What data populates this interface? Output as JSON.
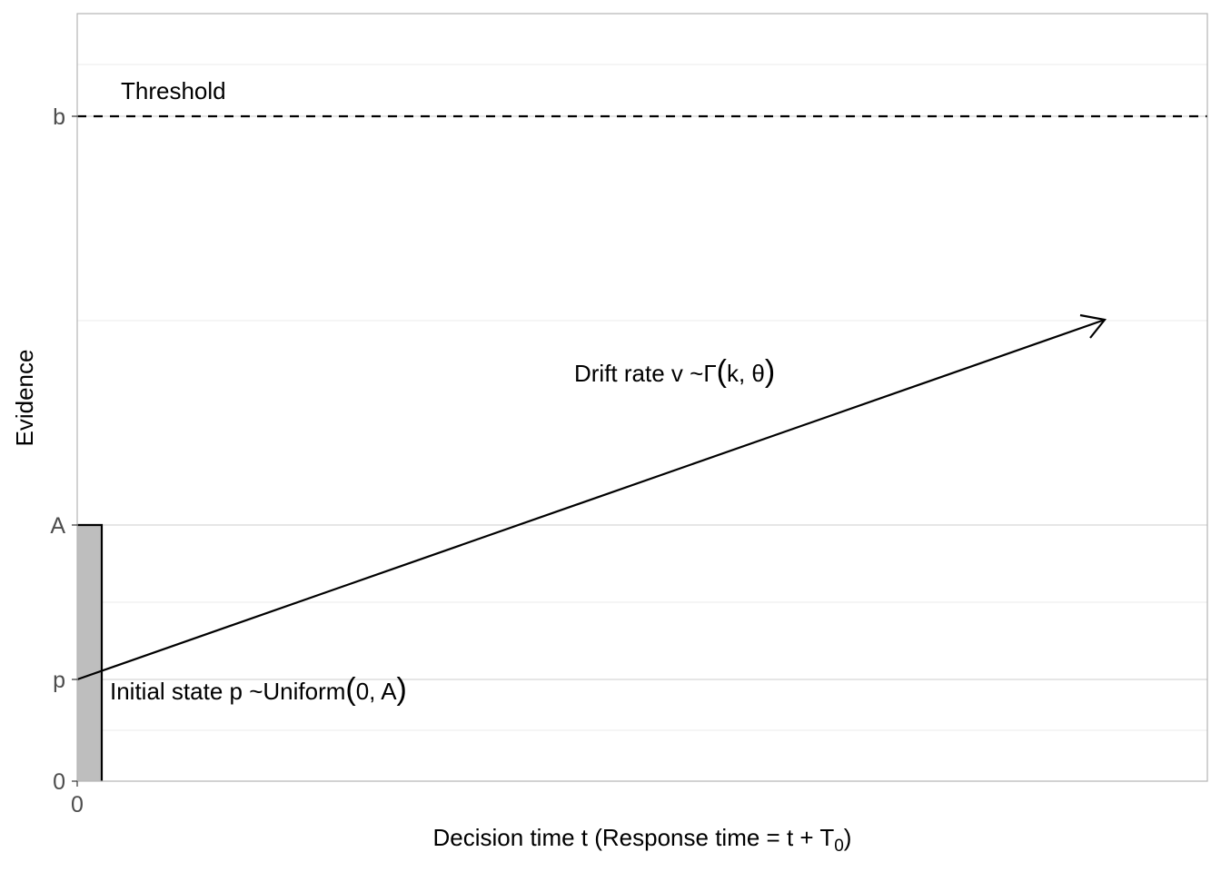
{
  "figure": {
    "y_axis_title": "Evidence",
    "x_axis_title": {
      "main": "Decision time t (Response time = t + T",
      "sub": "0",
      "close": ")"
    },
    "y_ticks": [
      "b",
      "A",
      "p",
      "0"
    ],
    "x_ticks": [
      "0"
    ],
    "threshold_label": "Threshold",
    "drift_label": {
      "prefix": "Drift rate v ~Γ",
      "open": "(",
      "args": "k, θ",
      "close": ")"
    },
    "initial_label": {
      "prefix": "Initial state p ~Uniform",
      "open": "(",
      "args": "0, A",
      "close": ")"
    },
    "colors": {
      "start_box_fill": "#bebebe",
      "grid": "#ebebeb",
      "panel_border": "#b3b3b3",
      "tick_text": "#4d4d4d",
      "ink": "#000000"
    }
  }
}
